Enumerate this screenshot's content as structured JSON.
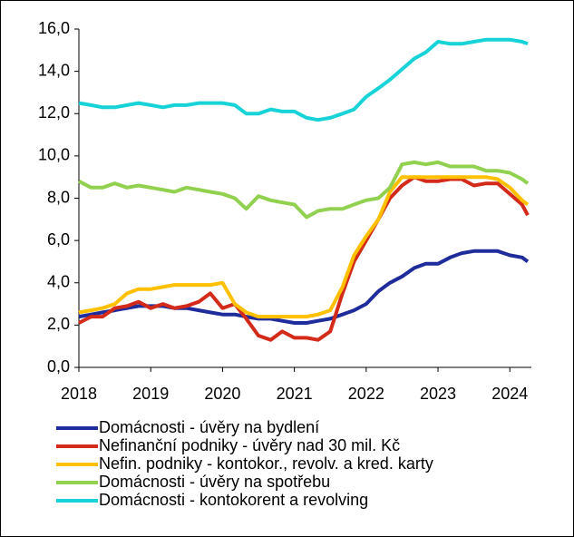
{
  "chart_data": {
    "type": "line",
    "x": [
      2018.0,
      2018.17,
      2018.33,
      2018.5,
      2018.67,
      2018.83,
      2019.0,
      2019.17,
      2019.33,
      2019.5,
      2019.67,
      2019.83,
      2020.0,
      2020.17,
      2020.33,
      2020.5,
      2020.67,
      2020.83,
      2021.0,
      2021.17,
      2021.33,
      2021.5,
      2021.67,
      2021.83,
      2022.0,
      2022.17,
      2022.33,
      2022.5,
      2022.67,
      2022.83,
      2023.0,
      2023.17,
      2023.33,
      2023.5,
      2023.67,
      2023.83,
      2024.0,
      2024.17,
      2024.25
    ],
    "series": [
      {
        "name": "Domácnosti - úvěry na bydlení",
        "color": "#1f2c9c",
        "values": [
          2.4,
          2.5,
          2.6,
          2.7,
          2.8,
          2.9,
          2.9,
          2.9,
          2.8,
          2.8,
          2.7,
          2.6,
          2.5,
          2.5,
          2.4,
          2.3,
          2.3,
          2.2,
          2.1,
          2.1,
          2.2,
          2.3,
          2.5,
          2.7,
          3.0,
          3.6,
          4.0,
          4.3,
          4.7,
          4.9,
          4.9,
          5.2,
          5.4,
          5.5,
          5.5,
          5.5,
          5.3,
          5.2,
          5.0
        ]
      },
      {
        "name": "Nefinanční podniky - úvěry nad 30 mil. Kč",
        "color": "#d42a1a",
        "values": [
          2.1,
          2.4,
          2.4,
          2.8,
          2.9,
          3.1,
          2.8,
          3.0,
          2.8,
          2.9,
          3.1,
          3.5,
          2.8,
          3.0,
          2.3,
          1.5,
          1.3,
          1.7,
          1.4,
          1.4,
          1.3,
          1.7,
          3.5,
          5.0,
          6.0,
          7.0,
          8.0,
          8.6,
          9.0,
          8.8,
          8.8,
          8.9,
          8.9,
          8.6,
          8.7,
          8.7,
          8.2,
          7.7,
          7.2
        ]
      },
      {
        "name": "Nefin. podniky - kontokor., revolv. a kred. karty",
        "color": "#ffc000",
        "values": [
          2.6,
          2.7,
          2.8,
          3.0,
          3.5,
          3.7,
          3.7,
          3.8,
          3.9,
          3.9,
          3.9,
          3.9,
          4.0,
          3.0,
          2.6,
          2.4,
          2.4,
          2.4,
          2.4,
          2.4,
          2.5,
          2.7,
          3.8,
          5.3,
          6.2,
          7.0,
          8.3,
          9.0,
          9.0,
          9.0,
          9.0,
          9.0,
          9.0,
          9.0,
          9.0,
          8.9,
          8.5,
          7.9,
          7.7
        ]
      },
      {
        "name": "Domácnosti - úvěry na spotřebu",
        "color": "#92d050",
        "values": [
          8.8,
          8.5,
          8.5,
          8.7,
          8.5,
          8.6,
          8.5,
          8.4,
          8.3,
          8.5,
          8.4,
          8.3,
          8.2,
          8.0,
          7.5,
          8.1,
          7.9,
          7.8,
          7.7,
          7.1,
          7.4,
          7.5,
          7.5,
          7.7,
          7.9,
          8.0,
          8.5,
          9.6,
          9.7,
          9.6,
          9.7,
          9.5,
          9.5,
          9.5,
          9.3,
          9.3,
          9.2,
          8.9,
          8.7
        ]
      },
      {
        "name": "Domácnosti - kontokorent a revolving",
        "color": "#17d3d8",
        "values": [
          12.5,
          12.4,
          12.3,
          12.3,
          12.4,
          12.5,
          12.4,
          12.3,
          12.4,
          12.4,
          12.5,
          12.5,
          12.5,
          12.4,
          12.0,
          12.0,
          12.2,
          12.1,
          12.1,
          11.8,
          11.7,
          11.8,
          12.0,
          12.2,
          12.8,
          13.2,
          13.6,
          14.1,
          14.6,
          14.9,
          15.4,
          15.3,
          15.3,
          15.4,
          15.5,
          15.5,
          15.5,
          15.4,
          15.3
        ]
      }
    ],
    "xlim": [
      2018,
      2024.3
    ],
    "xticks": [
      2018,
      2019,
      2020,
      2021,
      2022,
      2023,
      2024
    ],
    "ylim": [
      0,
      16
    ],
    "yticks": [
      {
        "value": 0,
        "label": "0,0"
      },
      {
        "value": 2,
        "label": "2,0"
      },
      {
        "value": 4,
        "label": "4,0"
      },
      {
        "value": 6,
        "label": "6,0"
      },
      {
        "value": 8,
        "label": "8,0"
      },
      {
        "value": 10,
        "label": "10,0"
      },
      {
        "value": 12,
        "label": "12,0"
      },
      {
        "value": 14,
        "label": "14,0"
      },
      {
        "value": 16,
        "label": "16,0"
      }
    ],
    "grid": false
  }
}
